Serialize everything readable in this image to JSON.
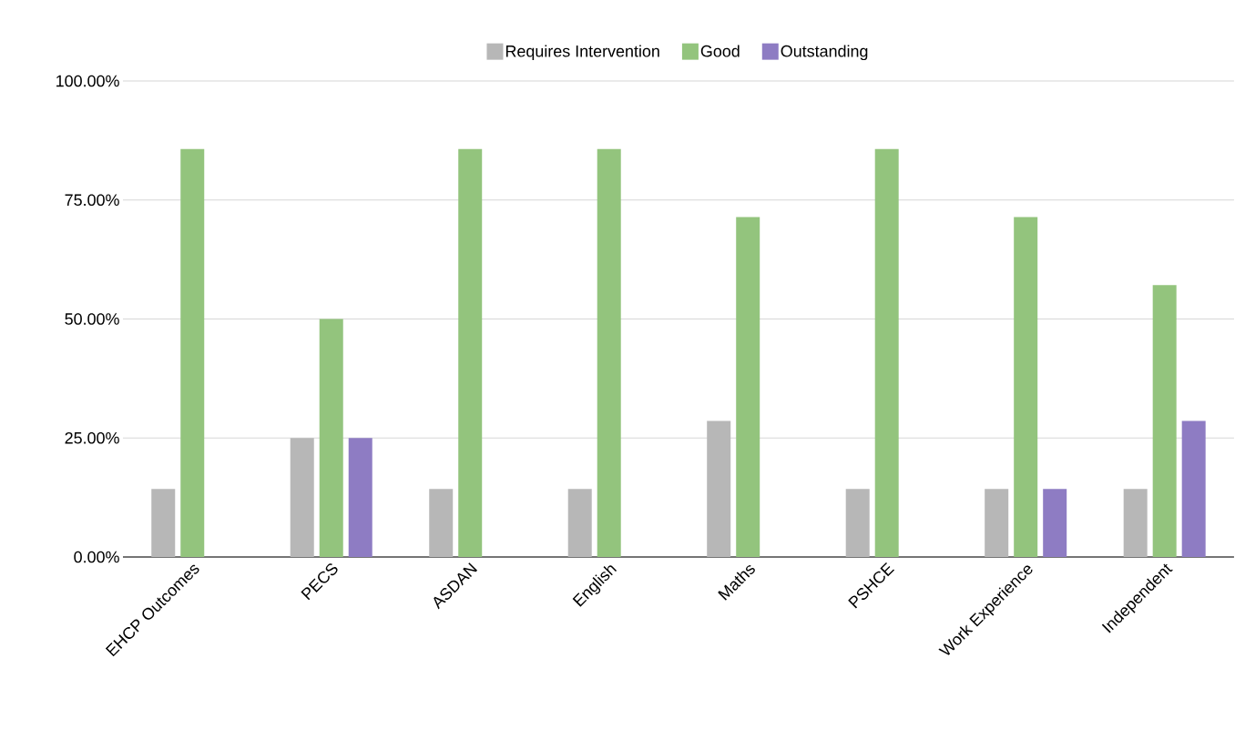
{
  "chart_data": {
    "type": "bar",
    "categories": [
      "EHCP Outcomes",
      "PECS",
      "ASDAN",
      "English",
      "Maths",
      "PSHCE",
      "Work Experience",
      "Independent"
    ],
    "series": [
      {
        "name": "Requires Intervention",
        "color": "#b7b7b7",
        "values": [
          14.3,
          25,
          14.3,
          14.3,
          28.6,
          14.3,
          14.3,
          14.3
        ]
      },
      {
        "name": "Good",
        "color": "#93c47d",
        "values": [
          85.7,
          50,
          85.7,
          85.7,
          71.4,
          85.7,
          71.4,
          57.1
        ]
      },
      {
        "name": "Outstanding",
        "color": "#8e7cc3",
        "values": [
          0,
          25,
          0,
          0,
          0,
          0,
          14.3,
          28.6
        ]
      }
    ],
    "ylim": [
      0,
      100
    ],
    "yticks": [
      {
        "value": 0,
        "label": "0.00%"
      },
      {
        "value": 25,
        "label": "25.00%"
      },
      {
        "value": 50,
        "label": "50.00%"
      },
      {
        "value": 75,
        "label": "75.00%"
      },
      {
        "value": 100,
        "label": "100.00%"
      }
    ],
    "grid": "y",
    "legend": "top"
  }
}
